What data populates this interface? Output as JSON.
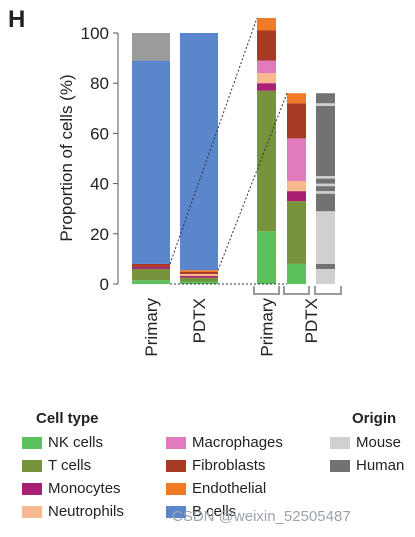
{
  "panel_label": "H",
  "watermark": "CSDN @weixin_52505487",
  "legend": {
    "cell_type_title": "Cell type",
    "origin_title": "Origin",
    "cell_types": [
      {
        "label": "NK cells",
        "color": "#5cc15c"
      },
      {
        "label": "T cells",
        "color": "#77933c"
      },
      {
        "label": "Monocytes",
        "color": "#a81f74"
      },
      {
        "label": "Neutrophils",
        "color": "#f9b98f"
      },
      {
        "label": "Macrophages",
        "color": "#e27bbd"
      },
      {
        "label": "Fibroblasts",
        "color": "#a83a24"
      },
      {
        "label": "Endothelial",
        "color": "#f07a25"
      },
      {
        "label": "B cells",
        "color": "#5b86cc"
      }
    ],
    "origins": [
      {
        "label": "Mouse",
        "color": "#d0d0d0"
      },
      {
        "label": "Human",
        "color": "#727272"
      }
    ]
  },
  "chart_data": {
    "type": "bar",
    "stacked": true,
    "ylabel": "Proportion of cells (%)",
    "ylim": [
      0,
      100
    ],
    "yticks": [
      0,
      20,
      40,
      60,
      80,
      100
    ],
    "main_bars": [
      {
        "label": "Primary",
        "segments": [
          {
            "name": "NK cells",
            "from": 0,
            "to": 1.5,
            "color": "#5cc15c"
          },
          {
            "name": "T cells",
            "from": 1.5,
            "to": 6,
            "color": "#77933c"
          },
          {
            "name": "Monocytes",
            "from": 6,
            "to": 6.8,
            "color": "#a81f74"
          },
          {
            "name": "Fibroblasts",
            "from": 6.8,
            "to": 8,
            "color": "#a83a24"
          },
          {
            "name": "B cells",
            "from": 8,
            "to": 89,
            "color": "#5b86cc"
          },
          {
            "name": "Human",
            "from": 89,
            "to": 100,
            "color": "#9b9b9b"
          }
        ]
      },
      {
        "label": "PDTX",
        "segments": [
          {
            "name": "NK cells",
            "from": 0,
            "to": 1,
            "color": "#5cc15c"
          },
          {
            "name": "T cells",
            "from": 1,
            "to": 2.5,
            "color": "#77933c"
          },
          {
            "name": "Monocytes",
            "from": 2.5,
            "to": 3.2,
            "color": "#a81f74"
          },
          {
            "name": "Neutrophils",
            "from": 3.2,
            "to": 4,
            "color": "#f9b98f"
          },
          {
            "name": "Fibroblasts",
            "from": 4,
            "to": 4.8,
            "color": "#a83a24"
          },
          {
            "name": "Endothelial",
            "from": 4.8,
            "to": 5.5,
            "color": "#f07a25"
          },
          {
            "name": "B cells",
            "from": 5.5,
            "to": 100,
            "color": "#5b86cc"
          }
        ]
      }
    ],
    "zoom_bars": [
      {
        "label": "Primary",
        "source_top": 8,
        "segments": [
          {
            "name": "NK cells",
            "from": 0,
            "to": 21,
            "color": "#5cc15c"
          },
          {
            "name": "T cells",
            "from": 21,
            "to": 77,
            "color": "#77933c"
          },
          {
            "name": "Monocytes",
            "from": 77,
            "to": 80,
            "color": "#a81f74"
          },
          {
            "name": "Neutrophils",
            "from": 80,
            "to": 84,
            "color": "#f9b98f"
          },
          {
            "name": "Macrophages",
            "from": 84,
            "to": 89,
            "color": "#e27bbd"
          },
          {
            "name": "Fibroblasts",
            "from": 89,
            "to": 101,
            "color": "#a83a24"
          },
          {
            "name": "Endothelial",
            "from": 101,
            "to": 106,
            "color": "#f07a25"
          }
        ]
      },
      {
        "label": "PDTX",
        "source_top": 5.5,
        "segments": [
          {
            "name": "NK cells",
            "from": 0,
            "to": 8,
            "color": "#5cc15c"
          },
          {
            "name": "T cells",
            "from": 8,
            "to": 33,
            "color": "#77933c"
          },
          {
            "name": "Monocytes",
            "from": 33,
            "to": 37,
            "color": "#a81f74"
          },
          {
            "name": "Neutrophils",
            "from": 37,
            "to": 41,
            "color": "#f9b98f"
          },
          {
            "name": "Macrophages",
            "from": 41,
            "to": 58,
            "color": "#e27bbd"
          },
          {
            "name": "Fibroblasts",
            "from": 58,
            "to": 72,
            "color": "#a83a24"
          },
          {
            "name": "Endothelial",
            "from": 72,
            "to": 76,
            "color": "#f07a25"
          }
        ],
        "origin_segments": [
          {
            "name": "Mouse",
            "from": 0,
            "to": 6,
            "color": "#d0d0d0"
          },
          {
            "name": "Human",
            "from": 6,
            "to": 8,
            "color": "#727272"
          },
          {
            "name": "Mouse",
            "from": 8,
            "to": 29,
            "color": "#d0d0d0"
          },
          {
            "name": "Human",
            "from": 29,
            "to": 36,
            "color": "#727272"
          },
          {
            "name": "Mouse",
            "from": 36,
            "to": 37,
            "color": "#d0d0d0"
          },
          {
            "name": "Human",
            "from": 37,
            "to": 39,
            "color": "#727272"
          },
          {
            "name": "Mouse",
            "from": 39,
            "to": 40,
            "color": "#d0d0d0"
          },
          {
            "name": "Human",
            "from": 40,
            "to": 42,
            "color": "#727272"
          },
          {
            "name": "Mouse",
            "from": 42,
            "to": 43,
            "color": "#d0d0d0"
          },
          {
            "name": "Human",
            "from": 43,
            "to": 71,
            "color": "#727272"
          },
          {
            "name": "Mouse",
            "from": 71,
            "to": 72,
            "color": "#d0d0d0"
          },
          {
            "name": "Human",
            "from": 72,
            "to": 76,
            "color": "#727272"
          }
        ]
      }
    ]
  }
}
